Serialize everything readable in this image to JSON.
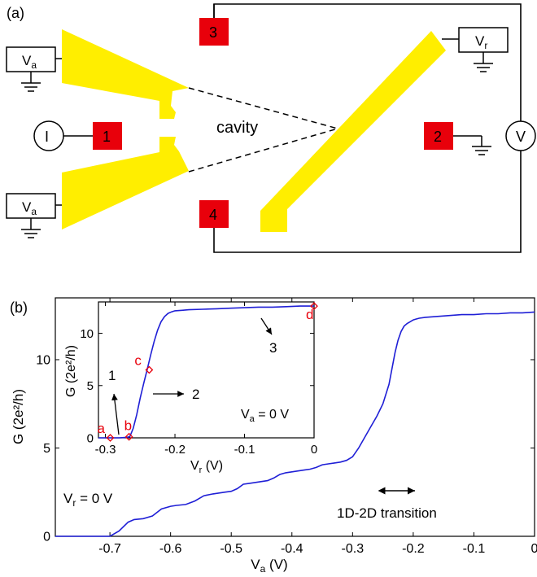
{
  "panel_a": {
    "label": "(a)",
    "cavity_label": "cavity",
    "va_box": "V",
    "va_sub": "a",
    "vr_box": "V",
    "vr_sub": "r",
    "current_source": "I",
    "voltmeter": "V",
    "contacts": [
      "1",
      "2",
      "3",
      "4"
    ],
    "colors": {
      "gate": "#ffee00",
      "contact": "#e8000b"
    }
  },
  "chart_data": [
    {
      "type": "line",
      "panel_label": "(b)",
      "xlabel": "V",
      "xlabel_sub": "a",
      "xlabel_unit": " (V)",
      "ylabel": "G (2e²/h)",
      "xlim": [
        -0.79,
        0.0
      ],
      "ylim": [
        0,
        13.5
      ],
      "xticks": [
        -0.7,
        -0.6,
        -0.5,
        -0.4,
        -0.3,
        -0.2,
        -0.1,
        0
      ],
      "xtick_labels": [
        "-0.7",
        "-0.6",
        "-0.5",
        "-0.4",
        "-0.3",
        "-0.2",
        "-0.1",
        "0"
      ],
      "yticks": [
        0,
        5,
        10
      ],
      "ytick_labels": [
        "0",
        "5",
        "10"
      ],
      "series_color": "#1f1fd6",
      "x": [
        -0.79,
        -0.72,
        -0.7,
        -0.685,
        -0.67,
        -0.66,
        -0.645,
        -0.63,
        -0.615,
        -0.6,
        -0.59,
        -0.575,
        -0.56,
        -0.545,
        -0.53,
        -0.52,
        -0.51,
        -0.5,
        -0.49,
        -0.48,
        -0.47,
        -0.46,
        -0.45,
        -0.44,
        -0.43,
        -0.42,
        -0.41,
        -0.4,
        -0.39,
        -0.38,
        -0.37,
        -0.36,
        -0.35,
        -0.34,
        -0.33,
        -0.32,
        -0.31,
        -0.3,
        -0.29,
        -0.28,
        -0.27,
        -0.26,
        -0.25,
        -0.24,
        -0.235,
        -0.23,
        -0.225,
        -0.22,
        -0.215,
        -0.21,
        -0.205,
        -0.2,
        -0.195,
        -0.19,
        -0.18,
        -0.16,
        -0.14,
        -0.12,
        -0.1,
        -0.08,
        -0.06,
        -0.04,
        -0.02,
        0.0
      ],
      "y": [
        0,
        0,
        0,
        0.3,
        0.8,
        0.95,
        1.0,
        1.15,
        1.55,
        1.7,
        1.75,
        1.8,
        2.0,
        2.3,
        2.4,
        2.45,
        2.5,
        2.55,
        2.7,
        2.95,
        3.0,
        3.05,
        3.1,
        3.15,
        3.3,
        3.5,
        3.6,
        3.65,
        3.7,
        3.75,
        3.8,
        3.9,
        4.05,
        4.1,
        4.15,
        4.2,
        4.3,
        4.5,
        5.0,
        5.6,
        6.2,
        6.8,
        7.5,
        8.6,
        9.5,
        10.4,
        11.1,
        11.6,
        11.9,
        12.05,
        12.15,
        12.25,
        12.3,
        12.35,
        12.4,
        12.45,
        12.5,
        12.55,
        12.55,
        12.6,
        12.6,
        12.65,
        12.65,
        12.7
      ],
      "annotations": {
        "condition": "V",
        "condition_sub": "r",
        "condition_value": " = 0 V",
        "transition_label": "1D-2D transition"
      }
    },
    {
      "type": "line",
      "panel_label": "inset",
      "xlabel": "V",
      "xlabel_sub": "r",
      "xlabel_unit": " (V)",
      "ylabel": "G (2e²/h)",
      "xlim": [
        -0.31,
        0.0
      ],
      "ylim": [
        0,
        13
      ],
      "xticks": [
        -0.3,
        -0.2,
        -0.1,
        0
      ],
      "xtick_labels": [
        "-0.3",
        "-0.2",
        "-0.1",
        "0"
      ],
      "yticks": [
        0,
        5,
        10
      ],
      "ytick_labels": [
        "0",
        "5",
        "10"
      ],
      "series_color": "#1f1fd6",
      "x": [
        -0.31,
        -0.29,
        -0.28,
        -0.27,
        -0.265,
        -0.26,
        -0.255,
        -0.25,
        -0.245,
        -0.24,
        -0.235,
        -0.23,
        -0.225,
        -0.22,
        -0.215,
        -0.21,
        -0.205,
        -0.2,
        -0.19,
        -0.18,
        -0.16,
        -0.14,
        -0.12,
        -0.1,
        -0.08,
        -0.06,
        -0.04,
        -0.02,
        0.0
      ],
      "y": [
        0,
        0,
        0,
        0.05,
        0.1,
        0.9,
        2.2,
        3.8,
        5.2,
        6.5,
        7.9,
        9.2,
        10.3,
        11.1,
        11.6,
        11.9,
        12.05,
        12.15,
        12.2,
        12.25,
        12.3,
        12.35,
        12.4,
        12.45,
        12.5,
        12.5,
        12.55,
        12.6,
        12.6
      ],
      "markers": [
        {
          "label": "a",
          "x": -0.293,
          "y": 0
        },
        {
          "label": "b",
          "x": -0.266,
          "y": 0.1
        },
        {
          "label": "c",
          "x": -0.237,
          "y": 6.5
        },
        {
          "label": "d",
          "x": 0.0,
          "y": 12.6
        }
      ],
      "arrows": [
        "1",
        "2",
        "3"
      ],
      "annotations": {
        "condition": "V",
        "condition_sub": "a",
        "condition_value": " = 0 V"
      }
    }
  ]
}
